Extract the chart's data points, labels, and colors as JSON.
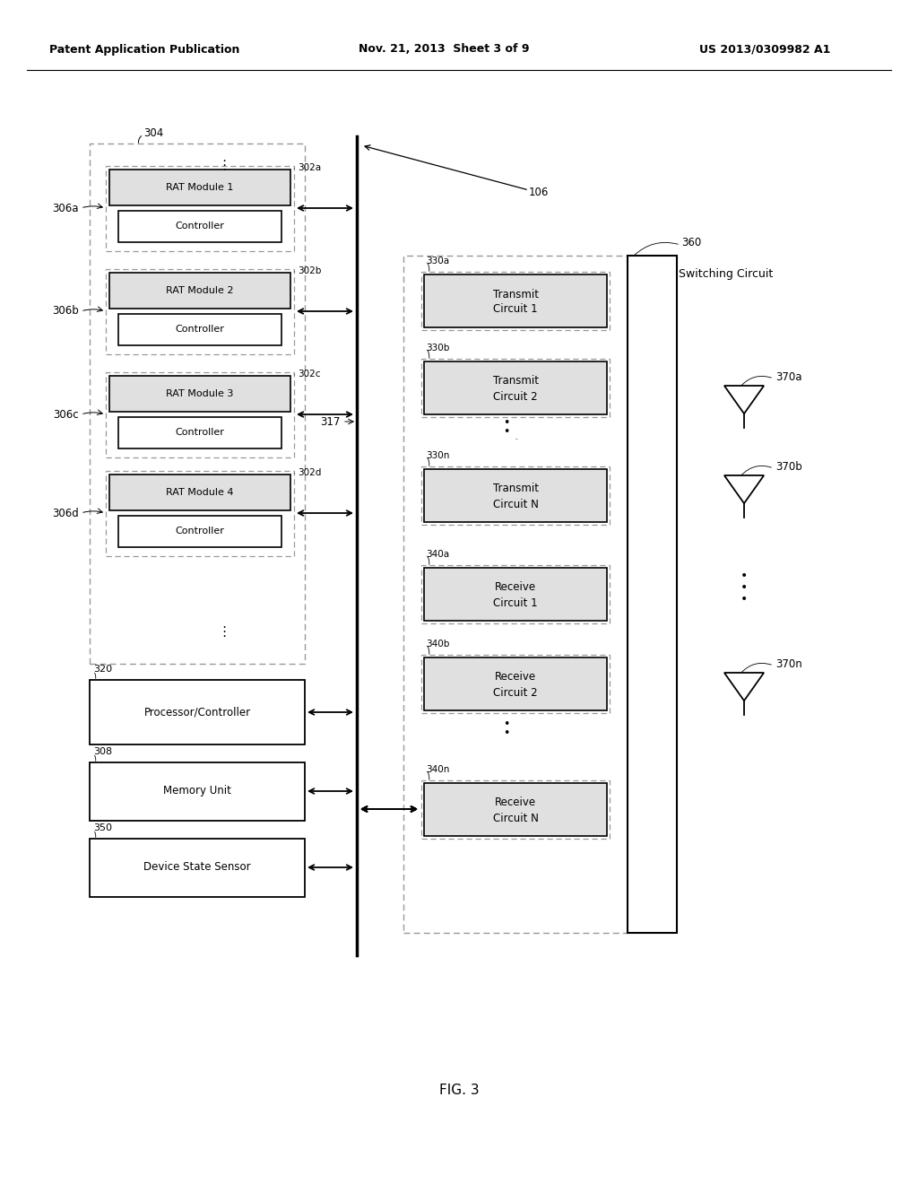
{
  "header_left": "Patent Application Publication",
  "header_mid": "Nov. 21, 2013  Sheet 3 of 9",
  "header_right": "US 2013/0309982 A1",
  "fig_label": "FIG. 3",
  "bg_color": "#ffffff"
}
